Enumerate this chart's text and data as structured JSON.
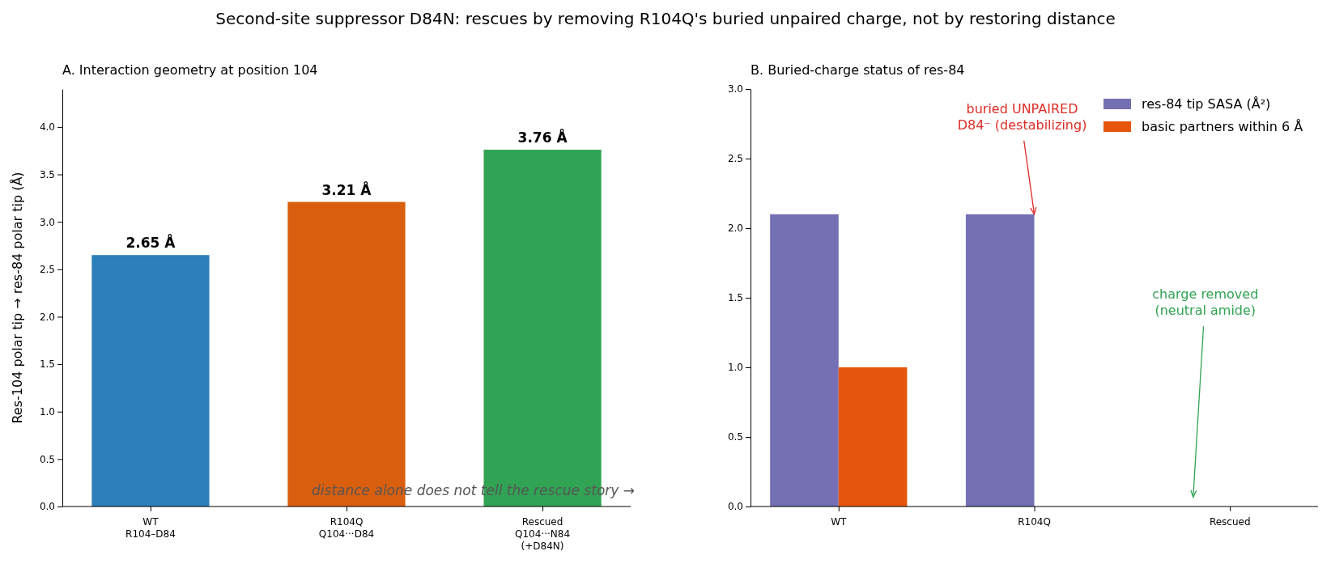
{
  "chart_data": [
    {
      "type": "bar",
      "title": "Second-site suppressor D84N: rescues by removing R104Q's buried unpaired charge, not by restoring distance",
      "subtitle": "A. Interaction geometry at position 104",
      "ylabel": "Res-104 polar tip → res-84 polar tip (Å)",
      "categories": [
        "WT\nR104–D84",
        "R104Q\nQ104···D84",
        "Rescued\nQ104···N84\n(+D84N)"
      ],
      "values": [
        2.65,
        3.21,
        3.76
      ],
      "colors": [
        "#2c7fb8",
        "#d95f0e",
        "#31a354"
      ],
      "value_labels": [
        "2.65 Å",
        "3.21 Å",
        "3.76 Å"
      ],
      "ylim": [
        0,
        4.4
      ],
      "yticks": [
        {
          "value": 0,
          "label": "0.0"
        },
        {
          "value": 0.5,
          "label": "0.5"
        },
        {
          "value": 1,
          "label": "1.0"
        },
        {
          "value": 1.5,
          "label": "1.5"
        },
        {
          "value": 2,
          "label": "2.0"
        },
        {
          "value": 2.5,
          "label": "2.5"
        },
        {
          "value": 3,
          "label": "3.0"
        },
        {
          "value": 3.5,
          "label": "3.5"
        },
        {
          "value": 4,
          "label": "4.0"
        }
      ],
      "annotations": [
        "distance alone does not tell the rescue story →"
      ],
      "grid": false,
      "legend": false
    },
    {
      "type": "bar",
      "subtitle": "B. Buried-charge status of res-84",
      "categories": [
        "WT",
        "R104Q",
        "Rescued"
      ],
      "series": [
        {
          "name": "res-84 tip SASA (Å²)",
          "color": "#7570b3",
          "values": [
            2.1,
            2.1,
            0
          ]
        },
        {
          "name": "basic partners within 6 Å",
          "color": "#e6550d",
          "values": [
            1,
            0,
            0
          ]
        }
      ],
      "ylim": [
        0,
        3
      ],
      "yticks": [
        {
          "value": 0,
          "label": "0.0"
        },
        {
          "value": 0.5,
          "label": "0.5"
        },
        {
          "value": 1,
          "label": "1.0"
        },
        {
          "value": 1.5,
          "label": "1.5"
        },
        {
          "value": 2,
          "label": "2.0"
        },
        {
          "value": 2.5,
          "label": "2.5"
        },
        {
          "value": 3,
          "label": "3.0"
        }
      ],
      "annotations": [
        {
          "text": "buried UNPAIRED\nD84⁻ (destabilizing)",
          "x": "R104Q",
          "y": 2.1
        },
        "charge removed\n(neutral amide)"
      ],
      "grid": false,
      "legend": "top right"
    }
  ]
}
